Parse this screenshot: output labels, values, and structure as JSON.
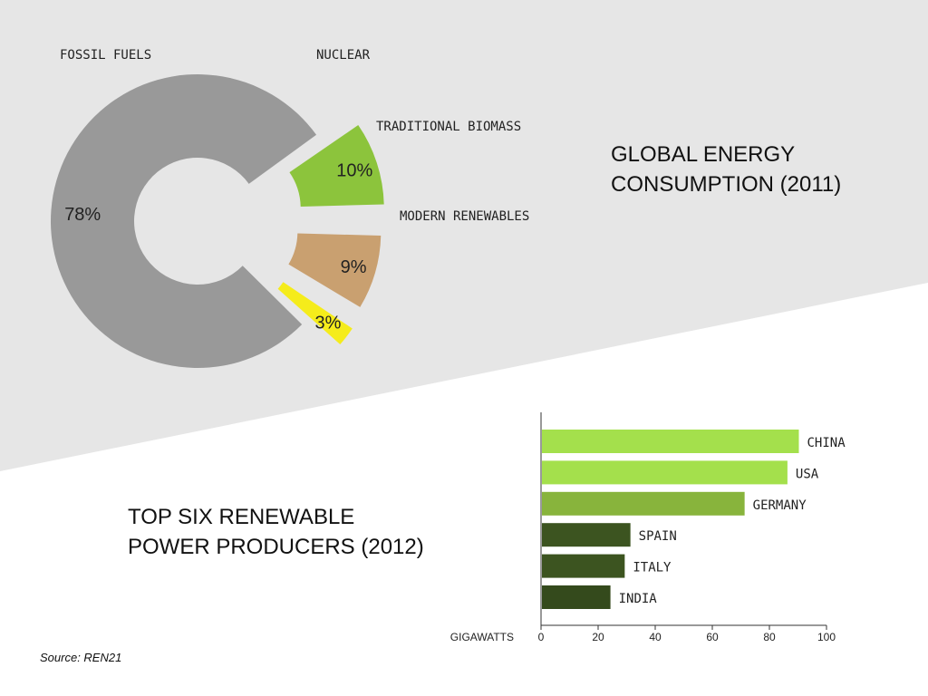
{
  "pie_title": {
    "line1": "GLOBAL ENERGY",
    "line2": "CONSUMPTION (2011)"
  },
  "bar_title": {
    "line1": "TOP SIX RENEWABLE",
    "line2": "POWER PRODUCERS (2012)"
  },
  "source": "Source: REN21",
  "colors": {
    "background_band": "#e6e6e6"
  },
  "chart_data": [
    {
      "type": "pie",
      "style": "donut, exploded slices",
      "title": "GLOBAL ENERGY CONSUMPTION (2011)",
      "slices": [
        {
          "label": "FOSSIL FUELS",
          "value": 78,
          "value_label": "78%",
          "color": "#999999"
        },
        {
          "label": "NUCLEAR",
          "value": 3,
          "value_label": "3%",
          "color": "#f5ec1b"
        },
        {
          "label": "TRADITIONAL BIOMASS",
          "value": 9,
          "value_label": "9%",
          "color": "#c9a070"
        },
        {
          "label": "MODERN RENEWABLES",
          "value": 10,
          "value_label": "10%",
          "color": "#8cc43c"
        }
      ]
    },
    {
      "type": "bar",
      "orientation": "horizontal",
      "title": "TOP SIX RENEWABLE POWER PRODUCERS (2012)",
      "categories": [
        "CHINA",
        "USA",
        "GERMANY",
        "SPAIN",
        "ITALY",
        "INDIA"
      ],
      "values": [
        90,
        86,
        71,
        31,
        29,
        24
      ],
      "colors": [
        "#a4e04c",
        "#a4e04c",
        "#88b43c",
        "#3c5420",
        "#3c5420",
        "#344a1c"
      ],
      "xlabel": "GIGAWATTS",
      "xlim": [
        0,
        100
      ],
      "xticks": [
        0,
        20,
        40,
        60,
        80,
        100
      ],
      "grid": false
    }
  ]
}
